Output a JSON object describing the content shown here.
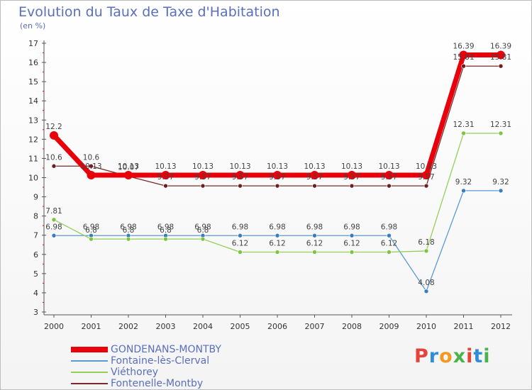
{
  "title": "Evolution du Taux de Taxe d'Habitation",
  "unit": "(en %)",
  "logo": {
    "text": "Proxiti",
    "colors": [
      "#e5433a",
      "#2e8fd8",
      "#f29a1f",
      "#4bb34b",
      "#e5433a",
      "#2e8fd8",
      "#4bb34b"
    ]
  },
  "chart_data": {
    "type": "line",
    "categories": [
      "2000",
      "2001",
      "2002",
      "2003",
      "2004",
      "2005",
      "2006",
      "2007",
      "2008",
      "2009",
      "2010",
      "2011",
      "2012"
    ],
    "ylim": [
      3,
      17
    ],
    "yticks": [
      "3",
      "4",
      "5",
      "6",
      "7",
      "8",
      "9",
      "10",
      "11",
      "12",
      "13",
      "14",
      "15",
      "16",
      "17"
    ],
    "grid": false,
    "legend": "bottom-left",
    "series": [
      {
        "name": "GONDENANS-MONTBY",
        "color": "#e8000b",
        "values": [
          12.2,
          10.13,
          10.13,
          10.13,
          10.13,
          10.13,
          10.13,
          10.13,
          10.13,
          10.13,
          10.13,
          16.39,
          16.39
        ],
        "labels": [
          "12.2",
          "10.13",
          "10.13",
          "10.13",
          "10.13",
          "10.13",
          "10.13",
          "10.13",
          "10.13",
          "10.13",
          "10.13",
          "16.39",
          "16.39"
        ]
      },
      {
        "name": "Fontaine-lès-Clerval",
        "color": "#5b9bd5",
        "values": [
          6.98,
          6.98,
          6.98,
          6.98,
          6.98,
          6.98,
          6.98,
          6.98,
          6.98,
          6.98,
          4.08,
          9.32,
          9.32
        ],
        "labels": [
          "6.98",
          "6.98",
          "6.98",
          "6.98",
          "6.98",
          "6.98",
          "6.98",
          "6.98",
          "6.98",
          "6.98",
          "4.08",
          "9.32",
          "9.32"
        ]
      },
      {
        "name": "Viéthorey",
        "color": "#92d05a",
        "values": [
          7.81,
          6.8,
          6.8,
          6.8,
          6.8,
          6.12,
          6.12,
          6.12,
          6.12,
          6.12,
          6.18,
          12.31,
          12.31
        ],
        "labels": [
          "7.81",
          "6.8",
          "6.8",
          "6.8",
          "6.8",
          "6.12",
          "6.12",
          "6.12",
          "6.12",
          "6.12",
          "6.18",
          "12.31",
          "12.31"
        ]
      },
      {
        "name": "Fontenelle-Montby",
        "color": "#7a2a2a",
        "values": [
          10.6,
          10.6,
          10.07,
          9.57,
          9.57,
          9.57,
          9.57,
          9.57,
          9.57,
          9.57,
          9.57,
          15.81,
          15.81
        ],
        "labels": [
          "10.6",
          "10.6",
          "10.07",
          "9.57",
          "9.57",
          "9.57",
          "9.57",
          "9.57",
          "9.57",
          "9.57",
          "9.57",
          "15.81",
          "15.81"
        ]
      }
    ]
  }
}
